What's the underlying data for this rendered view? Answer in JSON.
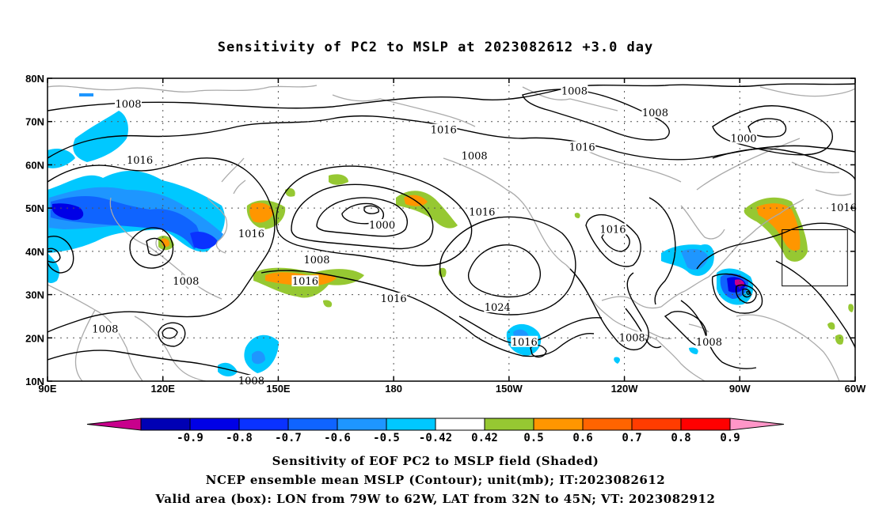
{
  "title": "Sensitivity of PC2 to MSLP at 2023082612 +3.0 day",
  "map": {
    "lon_range": [
      90,
      300
    ],
    "lat_range": [
      10,
      80
    ],
    "lat_ticks": [
      "10N",
      "20N",
      "30N",
      "40N",
      "50N",
      "60N",
      "70N",
      "80N"
    ],
    "lon_ticks": [
      "90E",
      "120E",
      "150E",
      "180",
      "150W",
      "120W",
      "90W",
      "60W"
    ],
    "grid": "dotted",
    "contour_labels": [
      {
        "text": "1008",
        "lon": 227,
        "lat": 77
      },
      {
        "text": "1008",
        "lon": 111,
        "lat": 74
      },
      {
        "text": "1008",
        "lon": 248,
        "lat": 72
      },
      {
        "text": "1016",
        "lon": 193,
        "lat": 68
      },
      {
        "text": "1016",
        "lon": 229,
        "lat": 64
      },
      {
        "text": "1000",
        "lon": 271,
        "lat": 66
      },
      {
        "text": "1008",
        "lon": 201,
        "lat": 62
      },
      {
        "text": "1016",
        "lon": 114,
        "lat": 61
      },
      {
        "text": "1016",
        "lon": 203,
        "lat": 49
      },
      {
        "text": "1016",
        "lon": 297,
        "lat": 50
      },
      {
        "text": "1000",
        "lon": 177,
        "lat": 46
      },
      {
        "text": "1016",
        "lon": 143,
        "lat": 44
      },
      {
        "text": "1016",
        "lon": 237,
        "lat": 45
      },
      {
        "text": "1008",
        "lon": 160,
        "lat": 38
      },
      {
        "text": "1016",
        "lon": 157,
        "lat": 33
      },
      {
        "text": "1008",
        "lon": 126,
        "lat": 33
      },
      {
        "text": "1016",
        "lon": 180,
        "lat": 29
      },
      {
        "text": "1024",
        "lon": 207,
        "lat": 27
      },
      {
        "text": "1008",
        "lon": 105,
        "lat": 22
      },
      {
        "text": "1008",
        "lon": 242,
        "lat": 20
      },
      {
        "text": "1008",
        "lon": 262,
        "lat": 19
      },
      {
        "text": "1016",
        "lon": 214,
        "lat": 19
      },
      {
        "text": "1008",
        "lon": 143,
        "lat": 10
      }
    ],
    "valid_box": {
      "lon": [
        281,
        298
      ],
      "lat": [
        32,
        45
      ]
    }
  },
  "colorbar": {
    "colors": [
      "#c8008c",
      "#0000b4",
      "#0000e6",
      "#0a32ff",
      "#0f64ff",
      "#1e96ff",
      "#00c8ff",
      "#ffffff",
      "#96c832",
      "#ff9600",
      "#ff6400",
      "#ff3c00",
      "#ff0000",
      "#ff96c8"
    ],
    "labels": [
      "-0.9",
      "-0.8",
      "-0.7",
      "-0.6",
      "-0.5",
      "-0.42",
      "0.42",
      "0.5",
      "0.6",
      "0.7",
      "0.8",
      "0.9"
    ]
  },
  "captions": [
    "Sensitivity of EOF PC2 to MSLP field (Shaded)",
    "NCEP ensemble mean MSLP (Contour); unit(mb); IT:2023082612",
    "Valid area (box): LON from 79W to 62W, LAT from 32N to 45N; VT: 2023082912"
  ]
}
